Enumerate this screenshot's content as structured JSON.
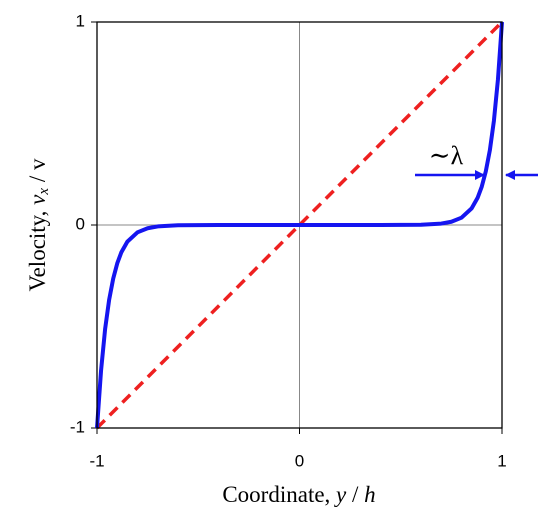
{
  "chart_data": {
    "type": "line",
    "xlabel": [
      "Coordinate, ",
      "y",
      " / ",
      "h"
    ],
    "ylabel": [
      "Velocity, ",
      "v",
      "x",
      " / v"
    ],
    "annotation": "∼λ",
    "xlim": [
      -1,
      1
    ],
    "ylim": [
      -1,
      1
    ],
    "xticks": [
      -1,
      0,
      1
    ],
    "yticks": [
      -1,
      0,
      1
    ],
    "grid": true,
    "series": [
      {
        "color": "#1515f0",
        "style": "solid",
        "x": [
          -1,
          -0.98,
          -0.96,
          -0.94,
          -0.92,
          -0.9,
          -0.88,
          -0.85,
          -0.8,
          -0.75,
          -0.7,
          -0.6,
          -0.4,
          0,
          0.4,
          0.6,
          0.7,
          0.75,
          0.8,
          0.85,
          0.88,
          0.9,
          0.92,
          0.94,
          0.96,
          0.98,
          1
        ],
        "values": [
          -1,
          -0.717,
          -0.513,
          -0.368,
          -0.264,
          -0.189,
          -0.135,
          -0.082,
          -0.036,
          -0.016,
          -0.007,
          -0.001,
          0,
          0,
          0,
          0.001,
          0.007,
          0.016,
          0.036,
          0.082,
          0.135,
          0.189,
          0.264,
          0.368,
          0.513,
          0.717,
          1
        ]
      },
      {
        "color": "#ee2020",
        "style": "dashed",
        "x": [
          -1,
          1
        ],
        "values": [
          -1,
          1
        ]
      }
    ]
  }
}
